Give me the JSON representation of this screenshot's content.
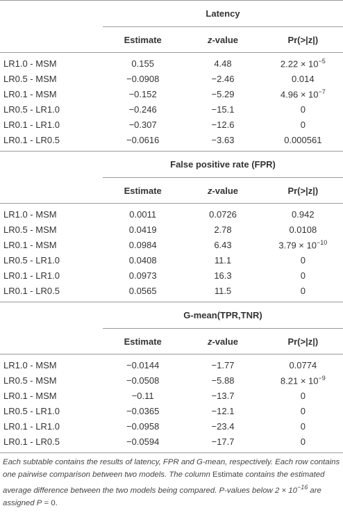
{
  "sections": [
    {
      "title": "Latency",
      "header": [
        "Estimate",
        {
          "italic": "z",
          "rest": "-value"
        },
        "Pr(>|z|)"
      ],
      "rows": [
        [
          "LR1.0 - MSM",
          "0.155",
          "4.48",
          {
            "base": "2.22 × 10",
            "exp": "−5"
          }
        ],
        [
          "LR0.5 - MSM",
          "−0.0908",
          "−2.46",
          "0.014"
        ],
        [
          "LR0.1 - MSM",
          "−0.152",
          "−5.29",
          {
            "base": "4.96 × 10",
            "exp": "−7"
          }
        ],
        [
          "LR0.5 - LR1.0",
          "−0.246",
          "−15.1",
          "0"
        ],
        [
          "LR0.1 - LR1.0",
          "−0.307",
          "−12.6",
          "0"
        ],
        [
          "LR0.1 - LR0.5",
          "−0.0616",
          "−3.63",
          "0.000561"
        ]
      ]
    },
    {
      "title": "False positive rate (FPR)",
      "header": [
        "Estimate",
        {
          "italic": "z",
          "rest": "-value"
        },
        "Pr(>|z|)"
      ],
      "rows": [
        [
          "LR1.0 - MSM",
          "0.0011",
          "0.0726",
          "0.942"
        ],
        [
          "LR0.5 - MSM",
          "0.0419",
          "2.78",
          "0.0108"
        ],
        [
          "LR0.1 - MSM",
          "0.0984",
          "6.43",
          {
            "base": "3.79 × 10",
            "exp": "−10"
          }
        ],
        [
          "LR0.5 - LR1.0",
          "0.0408",
          "11.1",
          "0"
        ],
        [
          "LR0.1 - LR1.0",
          "0.0973",
          "16.3",
          "0"
        ],
        [
          "LR0.1 - LR0.5",
          "0.0565",
          "11.5",
          "0"
        ]
      ]
    },
    {
      "title": "G-mean(TPR,TNR)",
      "header": [
        "Estimate",
        {
          "italic": "z",
          "rest": "-value"
        },
        "Pr(>|z|)"
      ],
      "rows": [
        [
          "LR1.0 - MSM",
          "−0.0144",
          "−1.77",
          "0.0774"
        ],
        [
          "LR0.5 - MSM",
          "−0.0508",
          "−5.88",
          {
            "base": "8.21 × 10",
            "exp": "−9"
          }
        ],
        [
          "LR0.1 - MSM",
          "−0.11",
          "−13.7",
          "0"
        ],
        [
          "LR0.5 - LR1.0",
          "−0.0365",
          "−12.1",
          "0"
        ],
        [
          "LR0.1 - LR1.0",
          "−0.0958",
          "−23.4",
          "0"
        ],
        [
          "LR0.1 - LR0.5",
          "−0.0594",
          "−17.7",
          "0"
        ]
      ]
    }
  ],
  "footnote": [
    {
      "text": "Each subtable contains the results of latency, FPR and G-mean, respectively. Each row contains one pairwise comparison between two models. The column ",
      "italic": true
    },
    {
      "text": "Estimate",
      "italic": false
    },
    {
      "text": " contains the estimated average difference between the two models being compared. P-values below 2 × 10",
      "italic": true
    },
    {
      "text": "−16",
      "italic": true,
      "sup": true
    },
    {
      "text": " are assigned ",
      "italic": true
    },
    {
      "text": "P",
      "italic": true
    },
    {
      "text": " = 0.",
      "italic": false
    }
  ]
}
